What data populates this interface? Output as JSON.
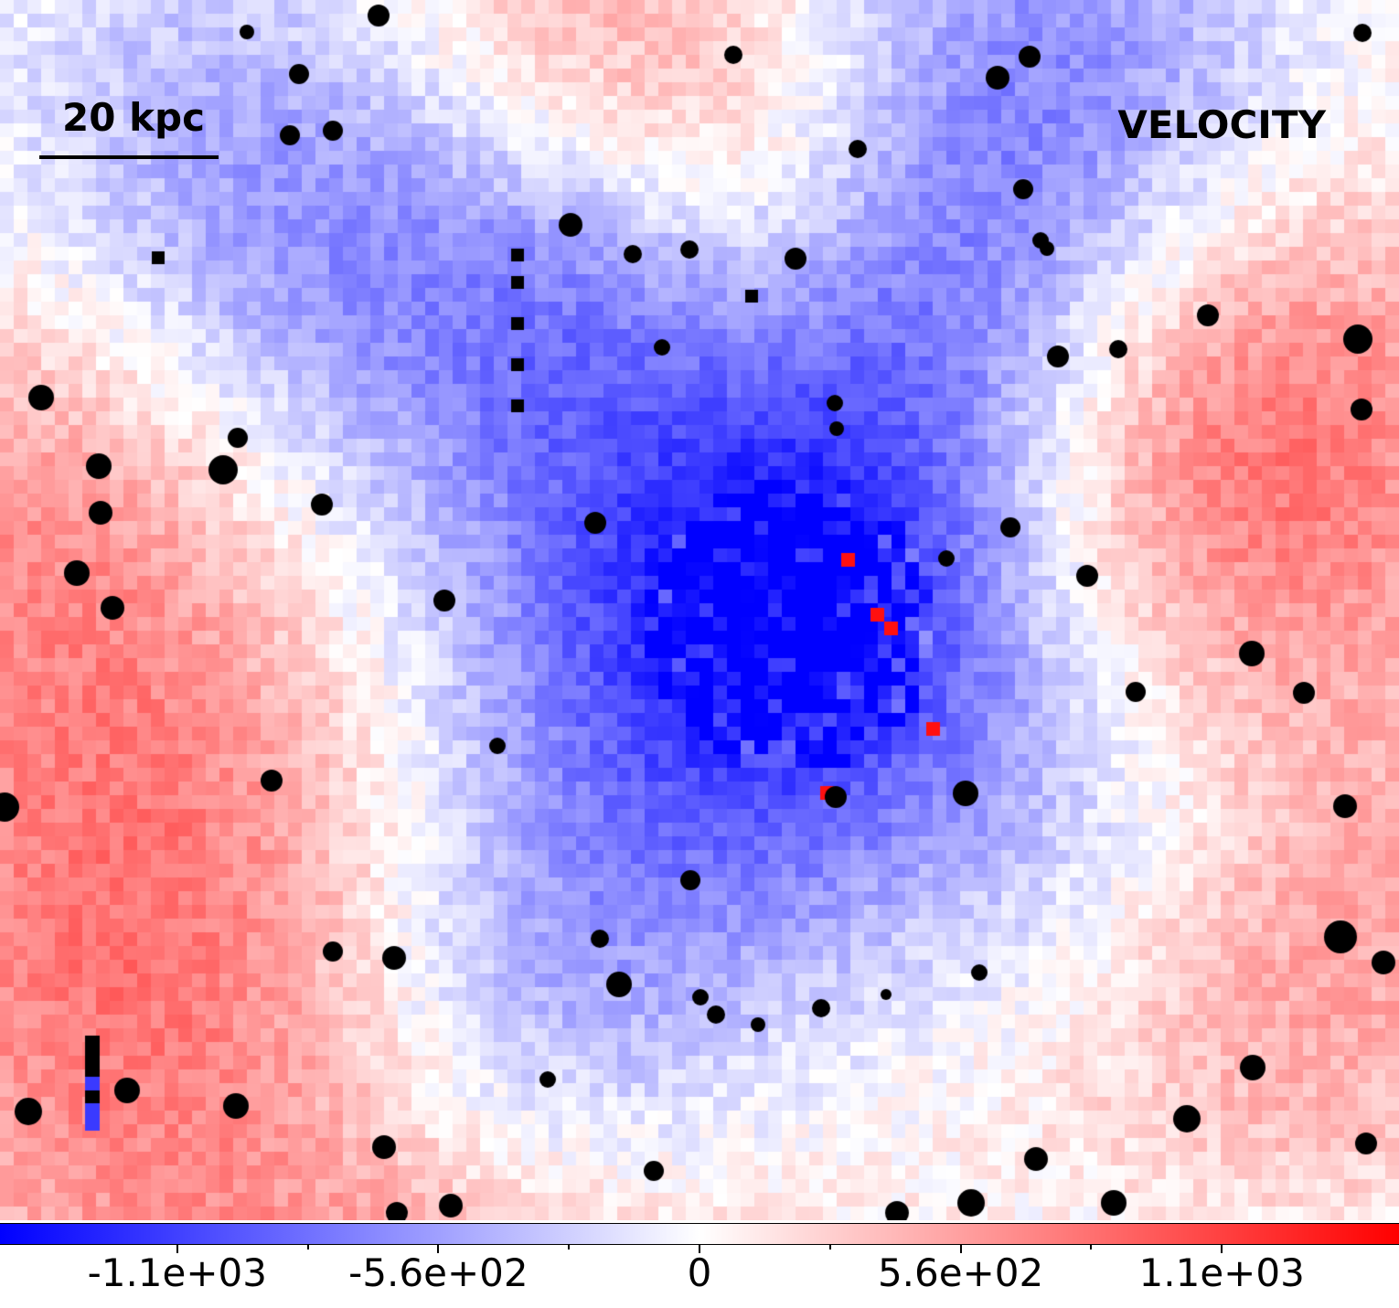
{
  "figure": {
    "scale_bar_label": "20 kpc",
    "quantity_label": "VELOCITY"
  },
  "colorbar": {
    "colormap": "bwr",
    "low_color": "#0000ff",
    "mid_color": "#ffffff",
    "high_color": "#ff0000",
    "range": [
      -1500,
      1500
    ],
    "ticks": [
      {
        "value": -1120,
        "label": "-1.1e+03"
      },
      {
        "value": -560,
        "label": "-5.6e+02"
      },
      {
        "value": 0,
        "label": "0"
      },
      {
        "value": 560,
        "label": "5.6e+02"
      },
      {
        "value": 1120,
        "label": "1.1e+03"
      }
    ],
    "minor_ticks": [
      -840,
      -280,
      280,
      840
    ]
  },
  "velocity_field": {
    "description_visible": "pixelated line-of-sight velocity map with black masked dots",
    "features": [
      {
        "kind": "blob",
        "sign": "negative",
        "strength": 0.55
      },
      {
        "kind": "blob",
        "sign": "positive",
        "strength": 0.6
      }
    ]
  }
}
